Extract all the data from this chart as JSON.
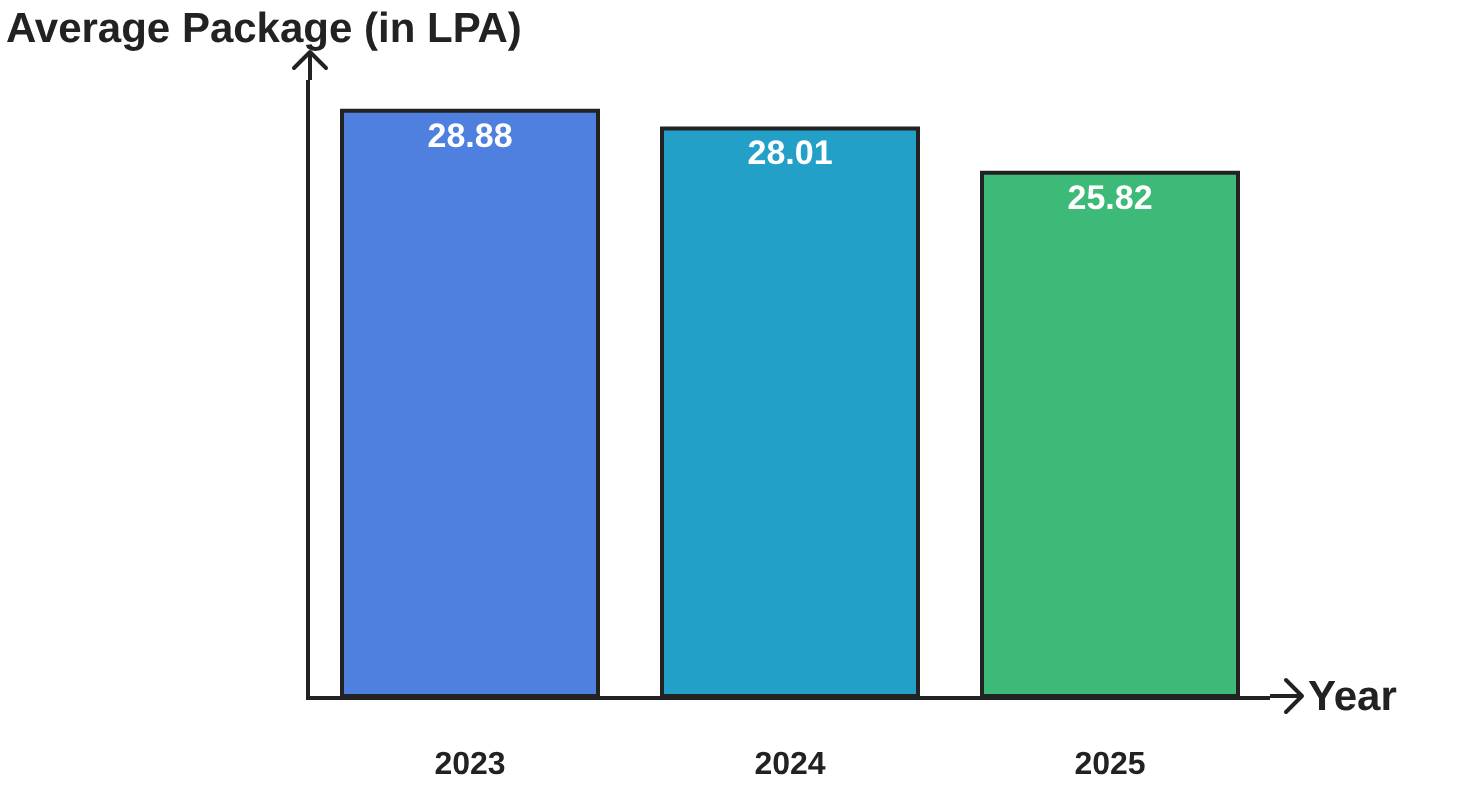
{
  "chart_data": {
    "type": "bar",
    "ylabel": "Average Package (in LPA)",
    "xlabel": "Year",
    "categories": [
      "2023",
      "2024",
      "2025"
    ],
    "values": [
      28.88,
      28.01,
      25.82
    ],
    "colors": [
      "#4f80e0",
      "#23a0c8",
      "#3dba78"
    ],
    "data_labels": true,
    "grid": false,
    "tick_labels": "x"
  }
}
